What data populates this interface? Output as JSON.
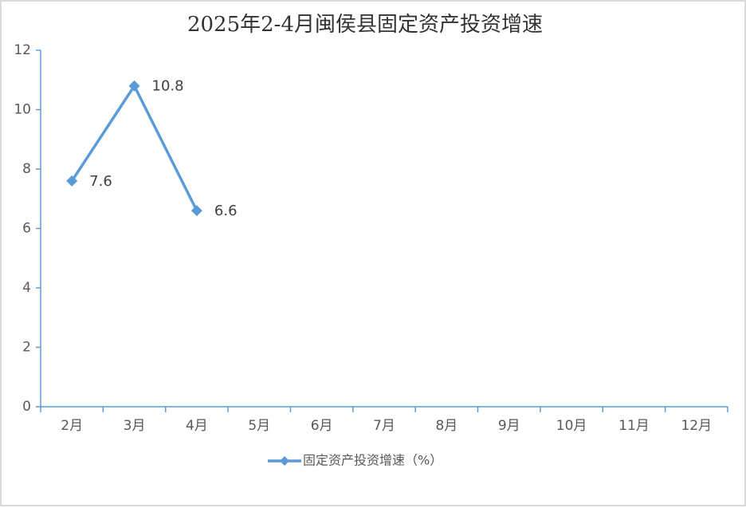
{
  "chart_data": {
    "type": "line",
    "title": "2025年2-4月闽侯县固定资产投资增速",
    "categories": [
      "2月",
      "3月",
      "4月",
      "5月",
      "6月",
      "7月",
      "8月",
      "9月",
      "10月",
      "11月",
      "12月"
    ],
    "series": [
      {
        "name": "固定资产投资增速（%）",
        "color": "#5b9bd5",
        "values": [
          7.6,
          10.8,
          6.6,
          null,
          null,
          null,
          null,
          null,
          null,
          null,
          null
        ]
      }
    ],
    "ylim": [
      0,
      12
    ],
    "yticks": [
      0,
      2,
      4,
      6,
      8,
      10,
      12
    ],
    "grid": false,
    "legend": "bottom"
  }
}
